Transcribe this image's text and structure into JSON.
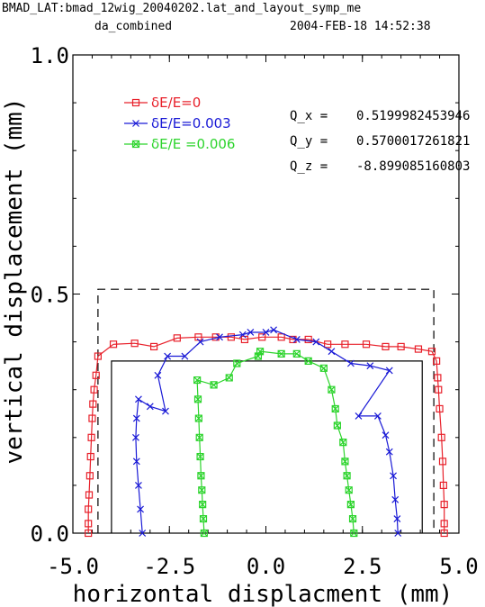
{
  "header": {
    "title": "BMAD_LAT:bmad_12wig_20040202.lat_and_layout_symp_me",
    "subtitle": "da_combined",
    "datetime": "2004-FEB-18 14:52:38"
  },
  "tunes": [
    {
      "label": "Q_x =",
      "value": "0.5199982453946"
    },
    {
      "label": "Q_y =",
      "value": "0.5700017261821"
    },
    {
      "label": "Q_z =",
      "value": "-8.899085160803"
    }
  ],
  "colors": {
    "series1": "#e8202a",
    "series2": "#1a1ad6",
    "series3": "#2cd42c",
    "frame": "#000000"
  },
  "chart_data": {
    "type": "line",
    "xlabel": "horizontal displacment (mm)",
    "ylabel": "vertical displacement (mm)",
    "xlim": [
      -5.0,
      5.0
    ],
    "ylim": [
      0.0,
      1.0
    ],
    "xticks": [
      "-5.0",
      "-2.5",
      "0.0",
      "2.5",
      "5.0"
    ],
    "yticks": [
      "0.0",
      "0.5",
      "1.0"
    ],
    "legend_position": "top-left",
    "series": [
      {
        "name": "δE/E=0",
        "marker": "square",
        "color": "#e8202a",
        "points": [
          [
            -4.6,
            0.0
          ],
          [
            -4.6,
            0.02
          ],
          [
            -4.6,
            0.05
          ],
          [
            -4.58,
            0.08
          ],
          [
            -4.56,
            0.12
          ],
          [
            -4.54,
            0.16
          ],
          [
            -4.52,
            0.2
          ],
          [
            -4.5,
            0.24
          ],
          [
            -4.48,
            0.27
          ],
          [
            -4.45,
            0.3
          ],
          [
            -4.4,
            0.33
          ],
          [
            -4.35,
            0.37
          ],
          [
            -3.95,
            0.395
          ],
          [
            -3.4,
            0.397
          ],
          [
            -2.9,
            0.39
          ],
          [
            -2.3,
            0.408
          ],
          [
            -1.75,
            0.41
          ],
          [
            -1.3,
            0.41
          ],
          [
            -0.9,
            0.41
          ],
          [
            -0.55,
            0.405
          ],
          [
            -0.1,
            0.41
          ],
          [
            0.4,
            0.41
          ],
          [
            0.7,
            0.405
          ],
          [
            1.1,
            0.405
          ],
          [
            1.6,
            0.395
          ],
          [
            2.05,
            0.395
          ],
          [
            2.6,
            0.395
          ],
          [
            3.1,
            0.39
          ],
          [
            3.5,
            0.39
          ],
          [
            3.95,
            0.385
          ],
          [
            4.3,
            0.38
          ],
          [
            4.42,
            0.36
          ],
          [
            4.45,
            0.325
          ],
          [
            4.47,
            0.3
          ],
          [
            4.5,
            0.26
          ],
          [
            4.55,
            0.2
          ],
          [
            4.58,
            0.15
          ],
          [
            4.6,
            0.1
          ],
          [
            4.62,
            0.06
          ],
          [
            4.62,
            0.02
          ],
          [
            4.62,
            0.0
          ]
        ]
      },
      {
        "name": "δE/E=0.003",
        "marker": "x",
        "color": "#1a1ad6",
        "points": [
          [
            -3.2,
            0.0
          ],
          [
            -3.25,
            0.05
          ],
          [
            -3.3,
            0.1
          ],
          [
            -3.35,
            0.15
          ],
          [
            -3.37,
            0.2
          ],
          [
            -3.35,
            0.24
          ],
          [
            -3.3,
            0.28
          ],
          [
            -3.0,
            0.265
          ],
          [
            -2.6,
            0.255
          ],
          [
            -2.8,
            0.33
          ],
          [
            -2.55,
            0.37
          ],
          [
            -2.1,
            0.37
          ],
          [
            -1.7,
            0.4
          ],
          [
            -1.2,
            0.41
          ],
          [
            -0.6,
            0.415
          ],
          [
            -0.4,
            0.42
          ],
          [
            0.0,
            0.42
          ],
          [
            0.2,
            0.425
          ],
          [
            0.8,
            0.405
          ],
          [
            1.3,
            0.4
          ],
          [
            1.7,
            0.38
          ],
          [
            2.2,
            0.355
          ],
          [
            2.7,
            0.35
          ],
          [
            3.2,
            0.34
          ],
          [
            2.4,
            0.245
          ],
          [
            2.9,
            0.245
          ],
          [
            3.1,
            0.205
          ],
          [
            3.2,
            0.17
          ],
          [
            3.3,
            0.12
          ],
          [
            3.35,
            0.07
          ],
          [
            3.4,
            0.03
          ],
          [
            3.42,
            0.0
          ]
        ]
      },
      {
        "name": "δE/E =0.006",
        "marker": "boxx",
        "color": "#2cd42c",
        "points": [
          [
            -1.6,
            0.0
          ],
          [
            -1.62,
            0.03
          ],
          [
            -1.64,
            0.06
          ],
          [
            -1.66,
            0.09
          ],
          [
            -1.68,
            0.12
          ],
          [
            -1.7,
            0.16
          ],
          [
            -1.72,
            0.2
          ],
          [
            -1.74,
            0.24
          ],
          [
            -1.76,
            0.28
          ],
          [
            -1.78,
            0.32
          ],
          [
            -1.35,
            0.31
          ],
          [
            -0.95,
            0.325
          ],
          [
            -0.75,
            0.355
          ],
          [
            -0.2,
            0.37
          ],
          [
            -0.15,
            0.38
          ],
          [
            0.4,
            0.375
          ],
          [
            0.8,
            0.375
          ],
          [
            1.1,
            0.36
          ],
          [
            1.5,
            0.345
          ],
          [
            1.7,
            0.3
          ],
          [
            1.8,
            0.26
          ],
          [
            1.85,
            0.225
          ],
          [
            2.0,
            0.19
          ],
          [
            2.05,
            0.15
          ],
          [
            2.1,
            0.12
          ],
          [
            2.15,
            0.09
          ],
          [
            2.2,
            0.06
          ],
          [
            2.25,
            0.03
          ],
          [
            2.28,
            0.0
          ]
        ]
      }
    ],
    "apertures": [
      {
        "style": "dashed",
        "x": [
          -4.35,
          4.35
        ],
        "y": [
          0.0,
          0.51
        ]
      },
      {
        "style": "solid",
        "x": [
          -4.0,
          4.05
        ],
        "y": [
          0.0,
          0.36
        ]
      }
    ]
  }
}
